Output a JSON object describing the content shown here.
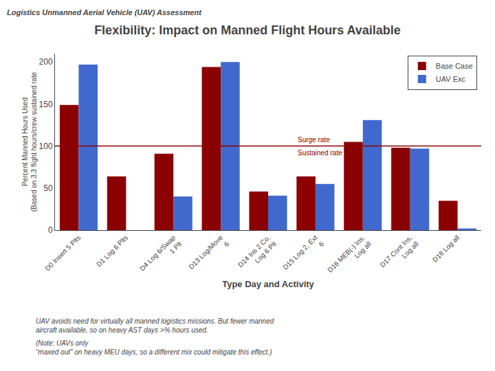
{
  "chart_data": {
    "type": "bar",
    "header": "Logistics Unmanned Aerial Vehicle (UAV) Assessment",
    "title": "Flexibility: Impact on Manned Flight Hours Available",
    "xlabel": "Type Day and Activity",
    "ylabel": "Percent Manned Hours Used\n(Based on 3.3 flight hours/crew sustained rate",
    "categories": [
      "D0 Insert 5 Plts",
      "D1 Log 6 Plts",
      "D4 Log 6/Swap\n1 Plt",
      "D13 Log/Move\n6",
      "D14 Ins 2 Co,\nLog 6 Plt",
      "D15 Log 2, Ext\n6",
      "D16 MEB(-) Ins,\nLog all",
      "D17 Cont Ins,\nLog all",
      "D18 Log all"
    ],
    "series": [
      {
        "name": "Base Case",
        "color": "#8B0000",
        "values": [
          149,
          64,
          91,
          194,
          46,
          64,
          105,
          98,
          35
        ]
      },
      {
        "name": "UAV Exc",
        "color": "#4169CD",
        "values": [
          197,
          0,
          40,
          200,
          41,
          55,
          131,
          97,
          2
        ]
      }
    ],
    "hline": {
      "value": 100,
      "color": "#8B0000",
      "labels": [
        "Surge rate",
        "Sustained rate"
      ]
    },
    "ylim": [
      0,
      210
    ],
    "yticks": [
      0,
      50,
      100,
      150,
      200
    ],
    "grid": false,
    "legend": "upper right",
    "footnotes": [
      "UAV avoids need for virtually all manned logistics missions. But fewer manned\naircraft available, so on heavy AST days >% hours used.",
      "(Note: UAVs only\n“maxed out” on heavy MEU days, so a different mix could mitigate this effect.)"
    ]
  }
}
